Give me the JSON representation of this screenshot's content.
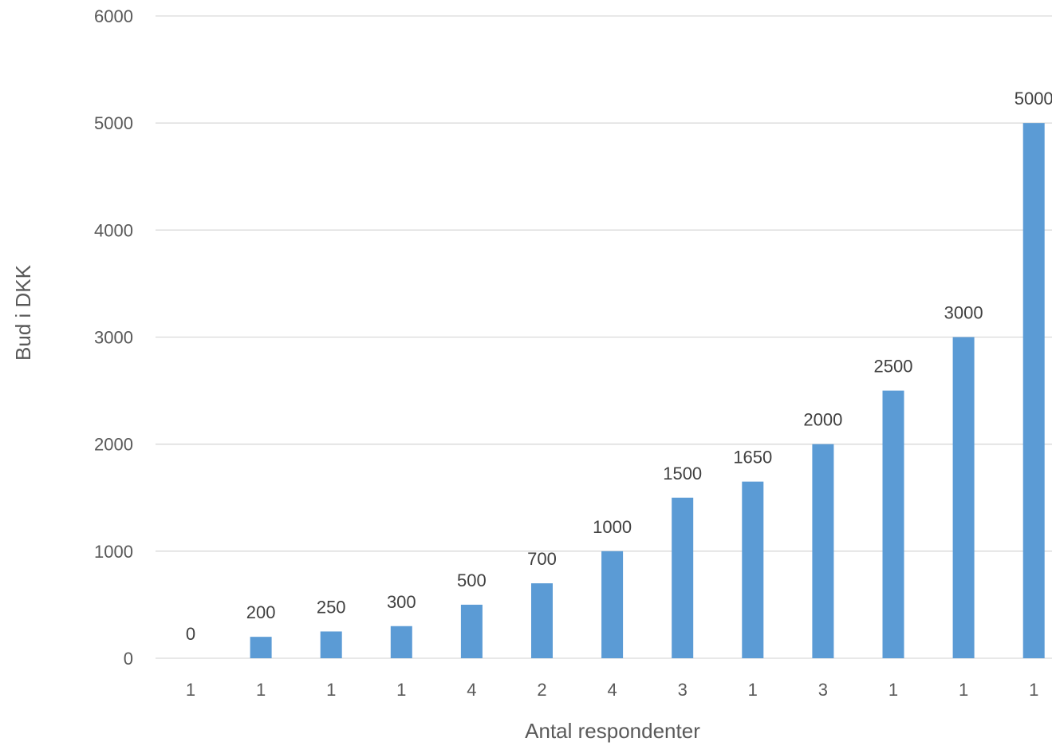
{
  "chart_data": {
    "type": "bar",
    "categories": [
      "1",
      "1",
      "1",
      "1",
      "4",
      "2",
      "4",
      "3",
      "1",
      "3",
      "1",
      "1",
      "1"
    ],
    "values": [
      0,
      200,
      250,
      300,
      500,
      700,
      1000,
      1500,
      1650,
      2000,
      2500,
      3000,
      5000
    ],
    "data_labels": [
      "0",
      "200",
      "250",
      "300",
      "500",
      "700",
      "1000",
      "1500",
      "1650",
      "2000",
      "2500",
      "3000",
      "5000"
    ],
    "xlabel": "Antal respondenter",
    "ylabel": "Bud i DKK",
    "ylim": [
      0,
      6000
    ],
    "yticks": [
      "0",
      "1000",
      "2000",
      "3000",
      "4000",
      "5000",
      "6000"
    ],
    "grid": true,
    "bar_color": "#5b9bd5",
    "gridline_color": "#d9d9d9"
  }
}
